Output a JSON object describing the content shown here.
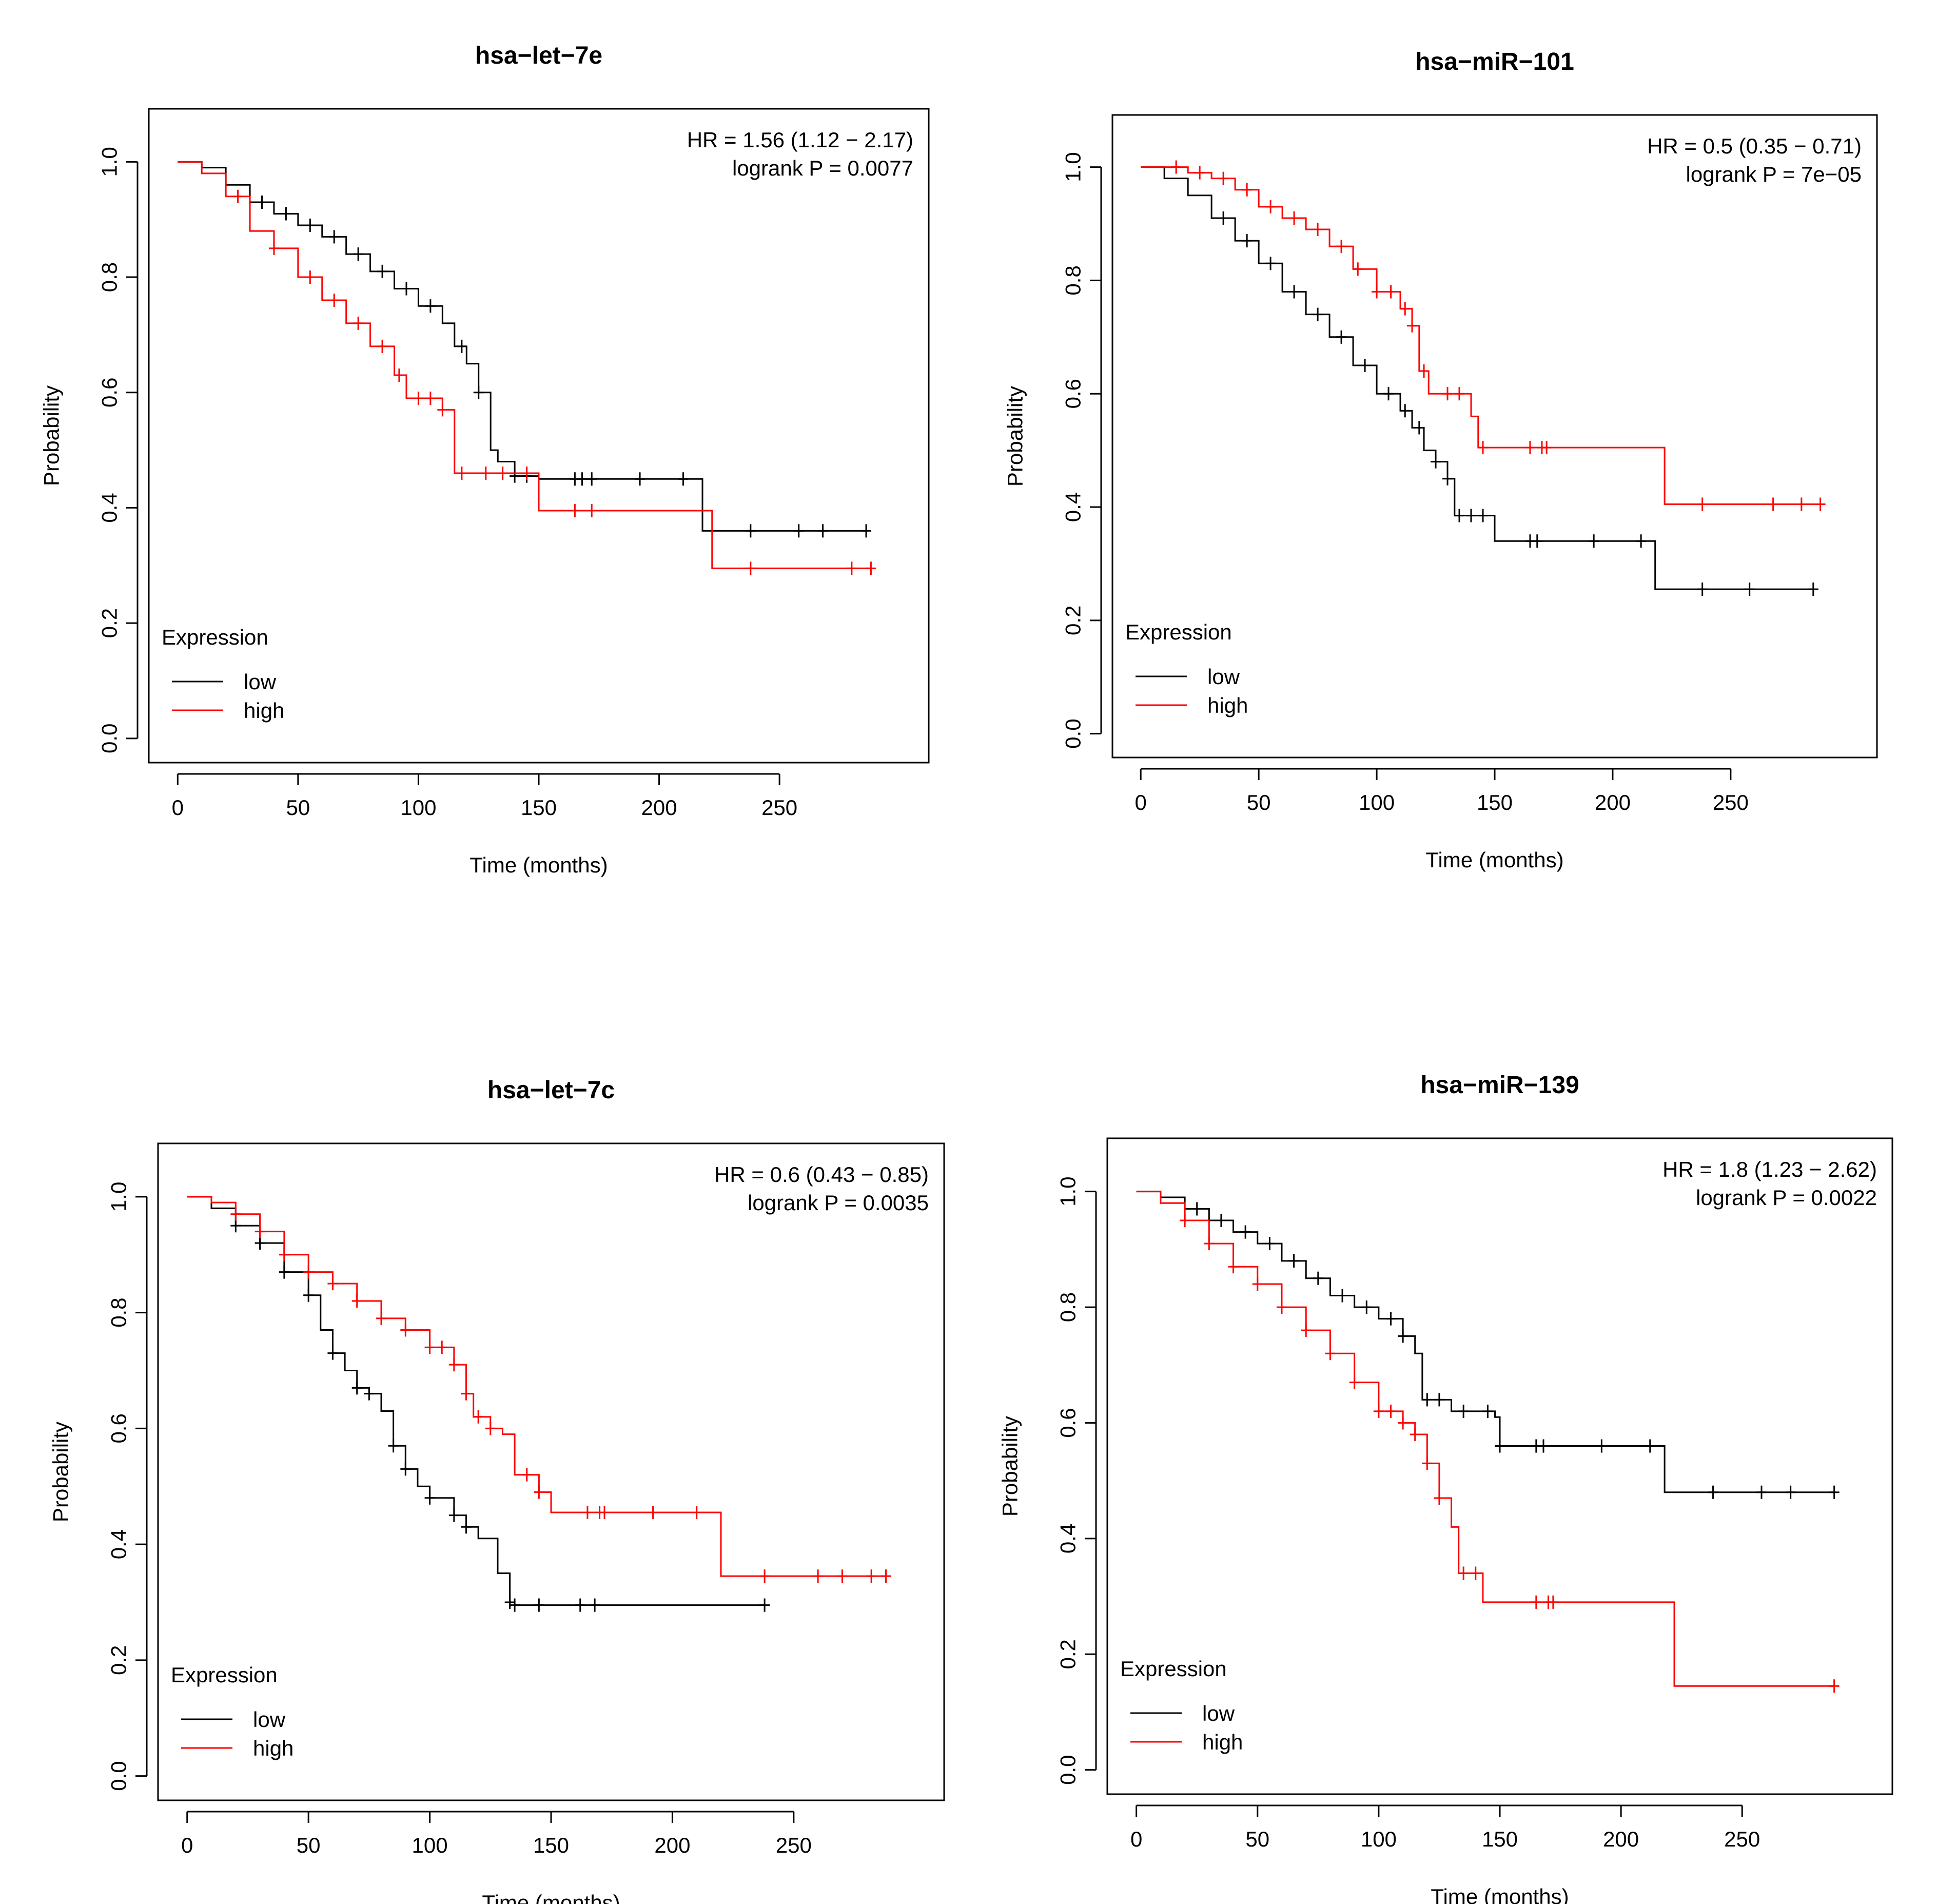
{
  "colors": {
    "low": "#000000",
    "high": "#ff0000"
  },
  "chart_data": [
    {
      "type": "line",
      "title": "hsa−let−7e",
      "xlabel": "Time (months)",
      "ylabel": "Probability",
      "xlim": [
        0,
        300
      ],
      "ylim": [
        0,
        1.05
      ],
      "xticks": [
        0,
        50,
        100,
        150,
        200,
        250
      ],
      "xtick_labels": [
        "0",
        "50",
        "100",
        "150",
        "200",
        "250"
      ],
      "yticks": [
        0,
        0.2,
        0.4,
        0.6,
        0.8,
        1.0
      ],
      "ytick_labels": [
        "0.0",
        "0.2",
        "0.4",
        "0.6",
        "0.8",
        "1.0"
      ],
      "annotation": [
        "HR = 1.56 (1.12 − 2.17)",
        "logrank P = 0.0077"
      ],
      "legend_title": "Expression",
      "legend_position": "bottom-left",
      "series": [
        {
          "name": "low",
          "color": "#000000",
          "x": [
            0,
            10,
            20,
            30,
            40,
            50,
            60,
            70,
            80,
            90,
            100,
            110,
            115,
            120,
            125,
            130,
            133,
            140,
            150,
            215,
            218,
            286
          ],
          "y": [
            1.0,
            0.99,
            0.96,
            0.93,
            0.91,
            0.89,
            0.87,
            0.84,
            0.81,
            0.78,
            0.75,
            0.72,
            0.68,
            0.65,
            0.6,
            0.5,
            0.48,
            0.455,
            0.45,
            0.45,
            0.36,
            0.36
          ],
          "censor": [
            35,
            45,
            55,
            65,
            75,
            85,
            95,
            105,
            118,
            125,
            140,
            145,
            165,
            168,
            172,
            192,
            210,
            238,
            258,
            268,
            286
          ]
        },
        {
          "name": "high",
          "color": "#ff0000",
          "x": [
            0,
            10,
            20,
            30,
            40,
            50,
            60,
            70,
            80,
            90,
            95,
            100,
            110,
            115,
            120,
            148,
            150,
            220,
            222,
            288
          ],
          "y": [
            1.0,
            0.98,
            0.94,
            0.88,
            0.85,
            0.8,
            0.76,
            0.72,
            0.68,
            0.63,
            0.59,
            0.59,
            0.57,
            0.46,
            0.46,
            0.46,
            0.395,
            0.395,
            0.295,
            0.295
          ],
          "censor": [
            25,
            40,
            55,
            65,
            75,
            85,
            92,
            100,
            105,
            110,
            118,
            128,
            135,
            145,
            165,
            172,
            238,
            280,
            288
          ]
        }
      ]
    },
    {
      "type": "line",
      "title": "hsa−miR−101",
      "xlabel": "Time (months)",
      "ylabel": "Probability",
      "xlim": [
        0,
        300
      ],
      "ylim": [
        0,
        1.05
      ],
      "xticks": [
        0,
        50,
        100,
        150,
        200,
        250
      ],
      "xtick_labels": [
        "0",
        "50",
        "100",
        "150",
        "200",
        "250"
      ],
      "yticks": [
        0,
        0.2,
        0.4,
        0.6,
        0.8,
        1.0
      ],
      "ytick_labels": [
        "0.0",
        "0.2",
        "0.4",
        "0.6",
        "0.8",
        "1.0"
      ],
      "annotation": [
        "HR = 0.5 (0.35 − 0.71)",
        "logrank P = 7e−05"
      ],
      "legend_title": "Expression",
      "legend_position": "bottom-left",
      "series": [
        {
          "name": "low",
          "color": "#000000",
          "x": [
            0,
            10,
            20,
            30,
            40,
            50,
            60,
            70,
            80,
            90,
            100,
            110,
            115,
            120,
            125,
            130,
            133,
            148,
            150,
            215,
            218,
            285
          ],
          "y": [
            1.0,
            0.98,
            0.95,
            0.91,
            0.87,
            0.83,
            0.78,
            0.74,
            0.7,
            0.65,
            0.6,
            0.57,
            0.54,
            0.5,
            0.48,
            0.45,
            0.385,
            0.385,
            0.34,
            0.34,
            0.255,
            0.255
          ],
          "censor": [
            35,
            45,
            55,
            65,
            75,
            85,
            95,
            105,
            112,
            118,
            125,
            130,
            135,
            140,
            145,
            165,
            168,
            192,
            212,
            238,
            258,
            285
          ]
        },
        {
          "name": "high",
          "color": "#ff0000",
          "x": [
            0,
            10,
            20,
            30,
            40,
            50,
            60,
            70,
            80,
            90,
            100,
            110,
            115,
            118,
            122,
            128,
            140,
            143,
            220,
            222,
            290
          ],
          "y": [
            1.0,
            1.0,
            0.99,
            0.98,
            0.96,
            0.93,
            0.91,
            0.89,
            0.86,
            0.82,
            0.78,
            0.75,
            0.72,
            0.64,
            0.6,
            0.6,
            0.56,
            0.505,
            0.505,
            0.405,
            0.405
          ],
          "censor": [
            15,
            25,
            35,
            45,
            55,
            65,
            75,
            85,
            92,
            100,
            106,
            112,
            115,
            120,
            130,
            135,
            145,
            165,
            170,
            172,
            238,
            268,
            280,
            288
          ]
        }
      ]
    },
    {
      "type": "line",
      "title": "hsa−let−7c",
      "xlabel": "Time (months)",
      "ylabel": "Probability",
      "xlim": [
        0,
        300
      ],
      "ylim": [
        0,
        1.05
      ],
      "xticks": [
        0,
        50,
        100,
        150,
        200,
        250
      ],
      "xtick_labels": [
        "0",
        "50",
        "100",
        "150",
        "200",
        "250"
      ],
      "yticks": [
        0,
        0.2,
        0.4,
        0.6,
        0.8,
        1.0
      ],
      "ytick_labels": [
        "0.0",
        "0.2",
        "0.4",
        "0.6",
        "0.8",
        "1.0"
      ],
      "annotation": [
        "HR = 0.6 (0.43 − 0.85)",
        "logrank P = 0.0035"
      ],
      "legend_title": "Expression",
      "legend_position": "bottom-left",
      "series": [
        {
          "name": "low",
          "color": "#000000",
          "x": [
            0,
            10,
            20,
            30,
            40,
            50,
            55,
            60,
            65,
            70,
            75,
            80,
            85,
            90,
            95,
            100,
            110,
            115,
            120,
            128,
            133,
            135,
            238
          ],
          "y": [
            1.0,
            0.98,
            0.95,
            0.92,
            0.87,
            0.83,
            0.77,
            0.73,
            0.7,
            0.67,
            0.66,
            0.63,
            0.57,
            0.53,
            0.5,
            0.48,
            0.45,
            0.43,
            0.41,
            0.35,
            0.3,
            0.295,
            0.295
          ],
          "censor": [
            20,
            30,
            40,
            50,
            60,
            70,
            75,
            85,
            90,
            100,
            110,
            115,
            133,
            135,
            145,
            162,
            168,
            238
          ]
        },
        {
          "name": "high",
          "color": "#ff0000",
          "x": [
            0,
            10,
            20,
            30,
            40,
            50,
            60,
            70,
            80,
            90,
            100,
            110,
            115,
            118,
            125,
            130,
            135,
            145,
            150,
            215,
            220,
            290
          ],
          "y": [
            1.0,
            0.99,
            0.97,
            0.94,
            0.9,
            0.87,
            0.85,
            0.82,
            0.79,
            0.77,
            0.74,
            0.71,
            0.66,
            0.62,
            0.6,
            0.59,
            0.52,
            0.49,
            0.455,
            0.455,
            0.345,
            0.345
          ],
          "censor": [
            20,
            30,
            40,
            50,
            60,
            70,
            80,
            90,
            100,
            105,
            110,
            115,
            120,
            125,
            140,
            145,
            165,
            170,
            172,
            192,
            210,
            238,
            260,
            270,
            282,
            288
          ]
        }
      ]
    },
    {
      "type": "line",
      "title": "hsa−miR−139",
      "xlabel": "Time (months)",
      "ylabel": "Probability",
      "xlim": [
        0,
        300
      ],
      "ylim": [
        0,
        1.05
      ],
      "xticks": [
        0,
        50,
        100,
        150,
        200,
        250
      ],
      "xtick_labels": [
        "0",
        "50",
        "100",
        "150",
        "200",
        "250"
      ],
      "yticks": [
        0,
        0.2,
        0.4,
        0.6,
        0.8,
        1.0
      ],
      "ytick_labels": [
        "0.0",
        "0.2",
        "0.4",
        "0.6",
        "0.8",
        "1.0"
      ],
      "annotation": [
        "HR = 1.8 (1.23 − 2.62)",
        "logrank P = 0.0022"
      ],
      "legend_title": "Expression",
      "legend_position": "bottom-left",
      "series": [
        {
          "name": "low",
          "color": "#000000",
          "x": [
            0,
            10,
            20,
            30,
            40,
            50,
            60,
            70,
            80,
            90,
            100,
            110,
            115,
            118,
            130,
            148,
            150,
            215,
            218,
            288
          ],
          "y": [
            1.0,
            0.99,
            0.97,
            0.95,
            0.93,
            0.91,
            0.88,
            0.85,
            0.82,
            0.8,
            0.78,
            0.75,
            0.72,
            0.64,
            0.62,
            0.61,
            0.56,
            0.56,
            0.48,
            0.48
          ],
          "censor": [
            25,
            35,
            45,
            55,
            65,
            75,
            85,
            95,
            105,
            110,
            120,
            125,
            135,
            145,
            150,
            165,
            168,
            192,
            212,
            238,
            258,
            270,
            288
          ]
        },
        {
          "name": "high",
          "color": "#ff0000",
          "x": [
            0,
            10,
            20,
            30,
            40,
            50,
            60,
            70,
            80,
            90,
            100,
            110,
            115,
            120,
            125,
            130,
            133,
            140,
            143,
            220,
            222,
            288
          ],
          "y": [
            1.0,
            0.98,
            0.95,
            0.91,
            0.87,
            0.84,
            0.8,
            0.76,
            0.72,
            0.67,
            0.62,
            0.6,
            0.58,
            0.53,
            0.47,
            0.42,
            0.34,
            0.34,
            0.29,
            0.29,
            0.145,
            0.145
          ],
          "censor": [
            20,
            30,
            40,
            50,
            60,
            70,
            80,
            90,
            100,
            105,
            110,
            115,
            120,
            125,
            135,
            140,
            165,
            170,
            172,
            288
          ]
        }
      ]
    }
  ]
}
